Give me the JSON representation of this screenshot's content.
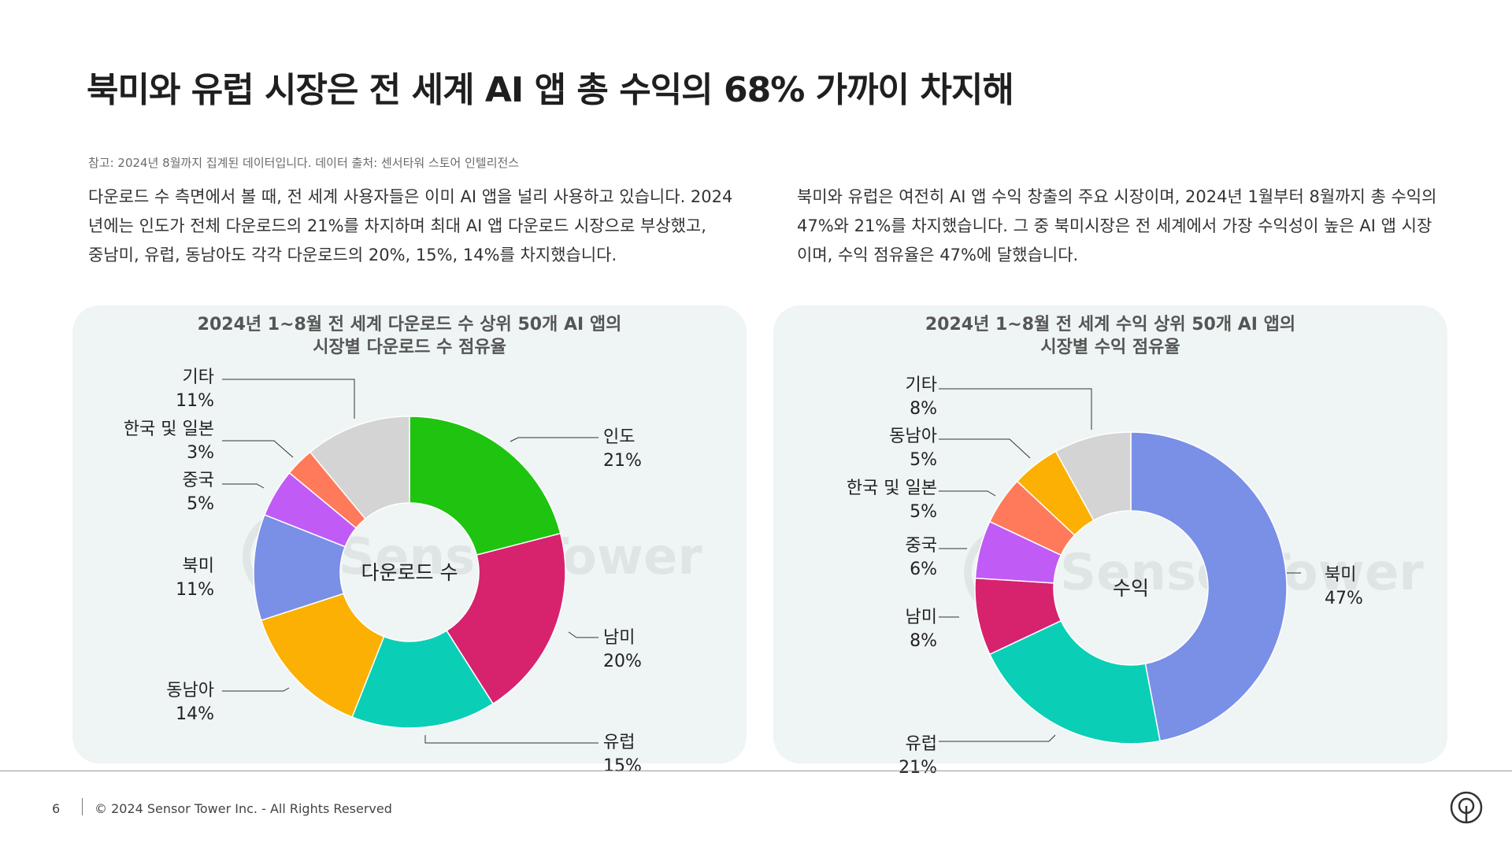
{
  "title": "북미와 유럽 시장은 전 세계 AI 앱 총 수익의 68% 가까이 차지해",
  "note": "참고: 2024년 8월까지 집계된 데이터입니다. 데이터 출처: 센서타워 스토어 인텔리전스",
  "paragraphs": {
    "left": [
      "다운로드 수 측면에서 볼 때, 전 세계 사용자들은 이미 AI 앱을 널리 사용하고 있습니다. 2024",
      "년에는 인도가 전체 다운로드의 21%를 차지하며 최대 AI 앱 다운로드 시장으로 부상했고,",
      "중남미, 유럽, 동남아도 각각 다운로드의 20%, 15%, 14%를 차지했습니다."
    ],
    "right": [
      "북미와 유럽은 여전히 AI 앱 수익 창출의 주요 시장이며, 2024년 1월부터 8월까지 총 수익의",
      "47%와 21%를 차지했습니다. 그 중 북미시장은 전 세계에서 가장 수익성이 높은 AI 앱 시장",
      "이며, 수익 점유율은 47%에 달했습니다."
    ]
  },
  "chart_data": [
    {
      "type": "pie",
      "donut": true,
      "title_lines": [
        "2024년 1~8월 전 세계 다운로드 수 상위 50개 AI 앱의",
        "시장별 다운로드 수 점유율"
      ],
      "center_label": "다운로드 수",
      "slices": [
        {
          "name": "인도",
          "value": 21,
          "label": "21%",
          "color": "#1ec40f"
        },
        {
          "name": "남미",
          "value": 20,
          "label": "20%",
          "color": "#d7226e"
        },
        {
          "name": "유럽",
          "value": 15,
          "label": "15%",
          "color": "#0acfb6"
        },
        {
          "name": "동남아",
          "value": 14,
          "label": "14%",
          "color": "#fbb003"
        },
        {
          "name": "북미",
          "value": 11,
          "label": "11%",
          "color": "#7a8fe6"
        },
        {
          "name": "중국",
          "value": 5,
          "label": "5%",
          "color": "#c05bf5"
        },
        {
          "name": "한국 및 일본",
          "value": 3,
          "label": "3%",
          "color": "#ff7a5a"
        },
        {
          "name": "기타",
          "value": 11,
          "label": "11%",
          "color": "#d4d4d4"
        }
      ]
    },
    {
      "type": "pie",
      "donut": true,
      "title_lines": [
        "2024년 1~8월 전 세계 수익 상위 50개 AI 앱의",
        "시장별 수익 점유율"
      ],
      "center_label": "수익",
      "slices": [
        {
          "name": "북미",
          "value": 47,
          "label": "47%",
          "color": "#7a8fe6"
        },
        {
          "name": "유럽",
          "value": 21,
          "label": "21%",
          "color": "#0acfb6"
        },
        {
          "name": "남미",
          "value": 8,
          "label": "8%",
          "color": "#d7226e"
        },
        {
          "name": "중국",
          "value": 6,
          "label": "6%",
          "color": "#c05bf5"
        },
        {
          "name": "한국 및 일본",
          "value": 5,
          "label": "5%",
          "color": "#ff7a5a"
        },
        {
          "name": "동남아",
          "value": 5,
          "label": "5%",
          "color": "#fbb003"
        },
        {
          "name": "기타",
          "value": 8,
          "label": "8%",
          "color": "#d4d4d4"
        }
      ]
    }
  ],
  "footer": {
    "page_number": "6",
    "copyright": "© 2024 Sensor Tower Inc. - All Rights Reserved"
  },
  "watermark_text": "SensorTower"
}
